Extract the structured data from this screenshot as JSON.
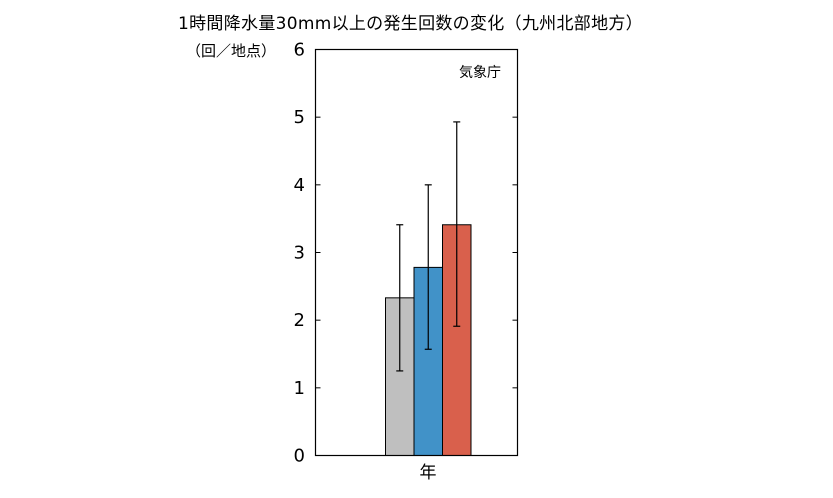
{
  "title": "1時間降水量30mm以上の発生回数の変化（九州北部地方）",
  "y_unit": "（回／地点）",
  "source": "気象庁",
  "colors": {
    "axis": "#000000",
    "error_bar": "#000000"
  },
  "chart_data": {
    "type": "bar",
    "categories": [
      "年"
    ],
    "series": [
      {
        "values": [
          2.33
        ],
        "error_low": [
          1.25
        ],
        "error_high": [
          3.41
        ],
        "color": "#bfbfbf"
      },
      {
        "values": [
          2.78
        ],
        "error_low": [
          1.57
        ],
        "error_high": [
          4.0
        ],
        "color": "#4192c8"
      },
      {
        "values": [
          3.41
        ],
        "error_low": [
          1.91
        ],
        "error_high": [
          4.93
        ],
        "color": "#d9604c"
      }
    ],
    "ylim": [
      0,
      6
    ],
    "yticks": [
      0,
      1,
      2,
      3,
      4,
      5,
      6
    ],
    "grid": false,
    "error_bars": true
  }
}
